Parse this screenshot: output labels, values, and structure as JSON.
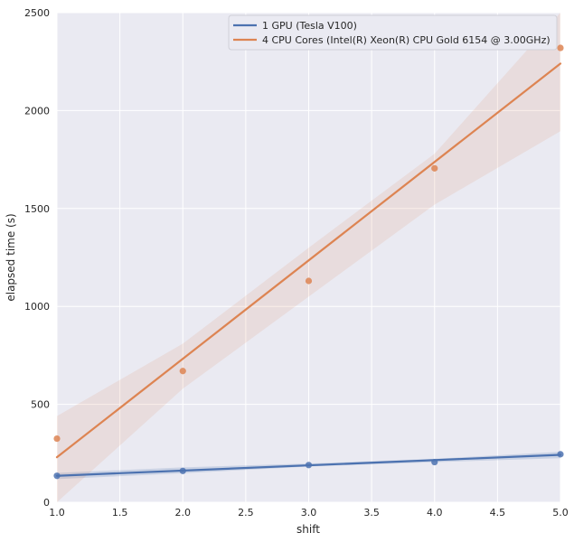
{
  "chart_data": {
    "type": "scatter",
    "xlabel": "shift",
    "ylabel": "elapsed time (s)",
    "xlim": [
      1.0,
      5.0
    ],
    "ylim": [
      0,
      2500
    ],
    "xticks": [
      "1.0",
      "1.5",
      "2.0",
      "2.5",
      "3.0",
      "3.5",
      "4.0",
      "4.5",
      "5.0"
    ],
    "yticks": [
      "0",
      "500",
      "1000",
      "1500",
      "2000",
      "2500"
    ],
    "grid": true,
    "legend_position": "top-right",
    "series": [
      {
        "name": "1 GPU (Tesla V100)",
        "color": "#4c72b0",
        "x": [
          1,
          2,
          3,
          4,
          5
        ],
        "y": [
          135,
          160,
          190,
          205,
          245
        ],
        "fit": [
          135,
          242
        ],
        "ci_upper": [
          150,
          178,
          198,
          222,
          258
        ],
        "ci_lower": [
          118,
          148,
          182,
          205,
          225
        ]
      },
      {
        "name": "4 CPU Cores (Intel(R) Xeon(R) CPU Gold 6154 @ 3.00GHz)",
        "color": "#dd8452",
        "x": [
          1,
          2,
          3,
          4,
          5
        ],
        "y": [
          325,
          670,
          1130,
          1705,
          2320
        ],
        "fit": [
          230,
          2240
        ],
        "ci_upper": [
          440,
          810,
          1300,
          1780,
          2540
        ],
        "ci_lower": [
          -40,
          580,
          1050,
          1520,
          1895
        ]
      }
    ]
  }
}
